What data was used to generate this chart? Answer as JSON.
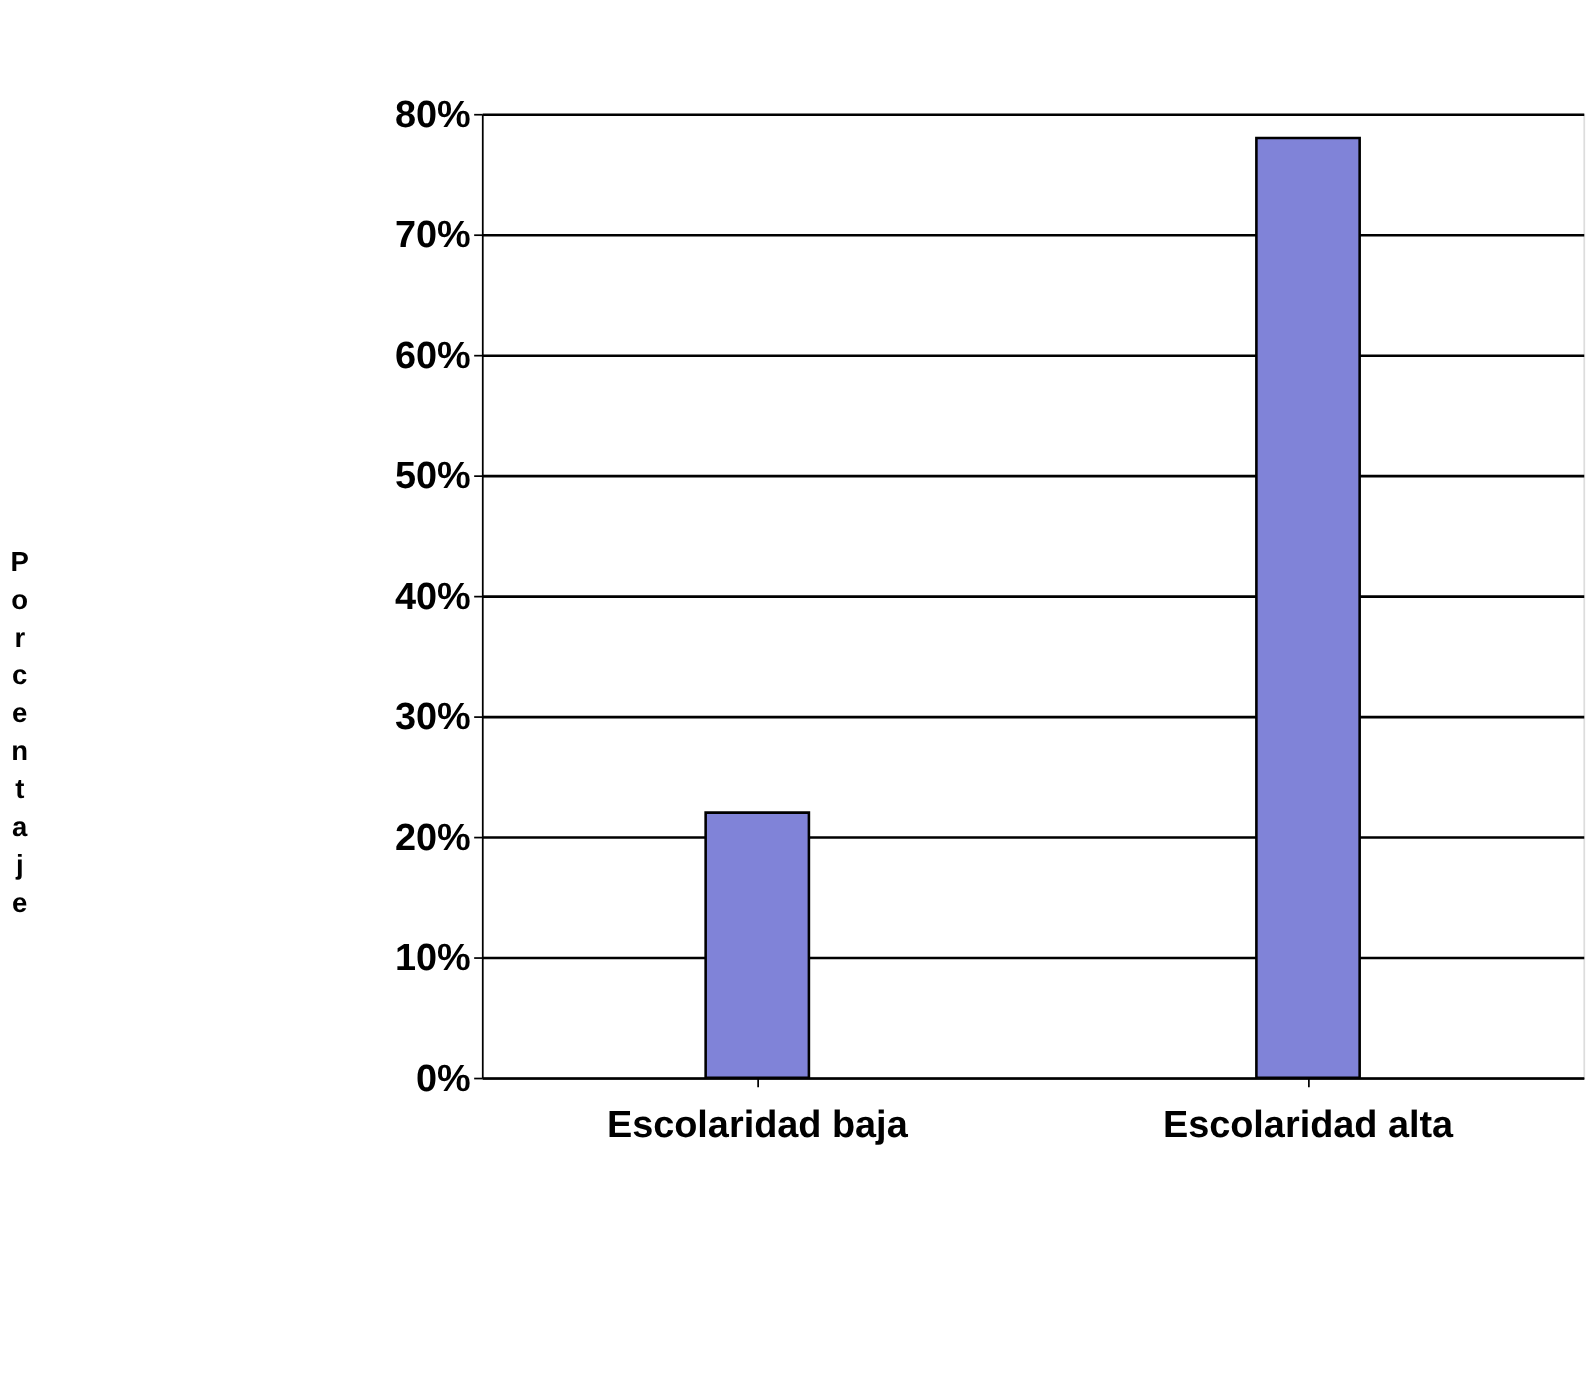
{
  "chart_data": {
    "type": "bar",
    "categories": [
      "Escolaridad baja",
      "Escolaridad alta"
    ],
    "values": [
      22,
      78
    ],
    "color": "#8083d8",
    "ylabel": "Porcentaje",
    "ylim": [
      0,
      80
    ],
    "yticks": [
      {
        "value": 0,
        "label": "0%"
      },
      {
        "value": 10,
        "label": "10%"
      },
      {
        "value": 20,
        "label": "20%"
      },
      {
        "value": 30,
        "label": "30%"
      },
      {
        "value": 40,
        "label": "40%"
      },
      {
        "value": 50,
        "label": "50%"
      },
      {
        "value": 60,
        "label": "60%"
      },
      {
        "value": 70,
        "label": "70%"
      },
      {
        "value": 80,
        "label": "80%"
      }
    ],
    "grid": "y",
    "legend": false
  }
}
